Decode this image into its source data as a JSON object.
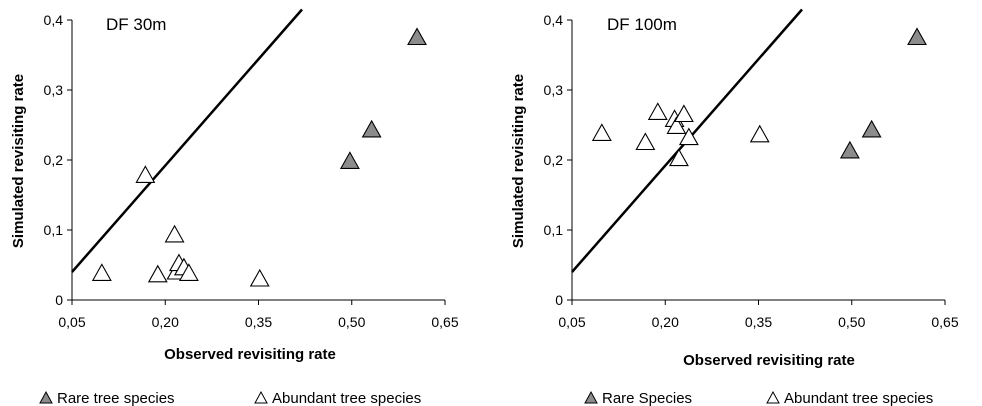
{
  "chart_data": [
    {
      "type": "scatter",
      "title": "DF 30m",
      "xlabel": "Observed revisiting rate",
      "ylabel": "Simulated revisiting rate",
      "xlim": [
        0.05,
        0.65
      ],
      "ylim": [
        0,
        0.4
      ],
      "x_ticks": [
        "0,05",
        "0,20",
        "0,35",
        "0,50",
        "0,65"
      ],
      "y_ticks": [
        "0",
        "0,1",
        "0,2",
        "0,3",
        "0,4"
      ],
      "grid": false,
      "reference_line": {
        "x": [
          0.05,
          0.42
        ],
        "y": [
          0.04,
          0.415
        ]
      },
      "series": [
        {
          "name": "Rare tree species",
          "marker": "triangle-filled",
          "color": "#8c8c8c",
          "x": [
            0.497,
            0.532,
            0.605
          ],
          "y": [
            0.198,
            0.243,
            0.375
          ]
        },
        {
          "name": "Abundant tree species",
          "marker": "triangle-open",
          "color": "#ffffff",
          "x": [
            0.098,
            0.168,
            0.188,
            0.215,
            0.218,
            0.222,
            0.23,
            0.238,
            0.352
          ],
          "y": [
            0.038,
            0.178,
            0.036,
            0.093,
            0.04,
            0.052,
            0.046,
            0.038,
            0.03
          ]
        }
      ],
      "legend": {
        "placement": "bottom",
        "entries": [
          "Rare tree species",
          "Abundant tree species"
        ]
      }
    },
    {
      "type": "scatter",
      "title": "DF 100m",
      "xlabel": "Observed revisiting rate",
      "ylabel": "Simulated revisiting rate",
      "xlim": [
        0.05,
        0.65
      ],
      "ylim": [
        0,
        0.4
      ],
      "x_ticks": [
        "0,05",
        "0,20",
        "0,35",
        "0,50",
        "0,65"
      ],
      "y_ticks": [
        "0",
        "0,1",
        "0,2",
        "0,3",
        "0,4"
      ],
      "grid": false,
      "reference_line": {
        "x": [
          0.05,
          0.42
        ],
        "y": [
          0.04,
          0.415
        ]
      },
      "series": [
        {
          "name": "Rare Species",
          "marker": "triangle-filled",
          "color": "#8c8c8c",
          "x": [
            0.497,
            0.532,
            0.605
          ],
          "y": [
            0.213,
            0.243,
            0.375
          ]
        },
        {
          "name": "Abundant tree species",
          "marker": "triangle-open",
          "color": "#ffffff",
          "x": [
            0.098,
            0.168,
            0.188,
            0.215,
            0.218,
            0.222,
            0.23,
            0.238,
            0.352
          ],
          "y": [
            0.238,
            0.225,
            0.268,
            0.258,
            0.248,
            0.202,
            0.265,
            0.232,
            0.236
          ]
        }
      ],
      "legend": {
        "placement": "bottom",
        "entries": [
          "Rare Species",
          "Abundant tree species"
        ]
      }
    }
  ]
}
